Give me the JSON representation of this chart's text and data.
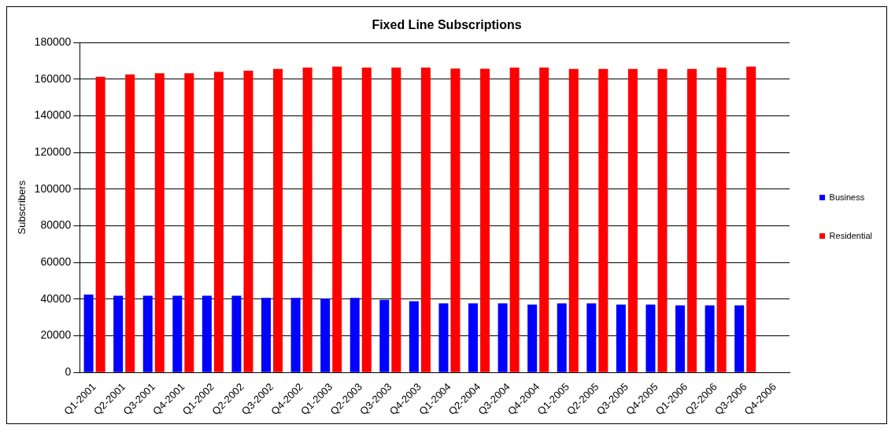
{
  "chart_data": {
    "type": "bar",
    "title": "Fixed Line Subscriptions",
    "ylabel": "Subscribers",
    "categories": [
      "Q1-2001",
      "Q2-2001",
      "Q3-2001",
      "Q4-2001",
      "Q1-2002",
      "Q2-2002",
      "Q3-2002",
      "Q4-2002",
      "Q1-2003",
      "Q2-2003",
      "Q3-2003",
      "Q4-2003",
      "Q1-2004",
      "Q2-2004",
      "Q3-2004",
      "Q4-2004",
      "Q1-2005",
      "Q2-2005",
      "Q3-2005",
      "Q4-2005",
      "Q1-2006",
      "Q2-2006",
      "Q3-2006",
      "Q4-2006"
    ],
    "series": [
      {
        "name": "Business",
        "color": "#0000ff",
        "values": [
          42500,
          41900,
          41900,
          41900,
          41900,
          41900,
          40700,
          40700,
          40300,
          40700,
          39600,
          38900,
          37700,
          37700,
          37700,
          37100,
          37700,
          37700,
          37100,
          37100,
          36600,
          36600,
          36600,
          null
        ]
      },
      {
        "name": "Residential",
        "color": "#ff0000",
        "values": [
          161300,
          162600,
          163300,
          163300,
          164000,
          164700,
          165600,
          166400,
          166900,
          166400,
          166400,
          166400,
          165800,
          165700,
          166400,
          166400,
          165600,
          165600,
          165600,
          165600,
          165600,
          166400,
          166900,
          null
        ]
      }
    ],
    "ylim": [
      0,
      180000
    ],
    "yticks": [
      0,
      20000,
      40000,
      60000,
      80000,
      100000,
      120000,
      140000,
      160000,
      180000
    ],
    "grid": "y",
    "legend": "right"
  }
}
